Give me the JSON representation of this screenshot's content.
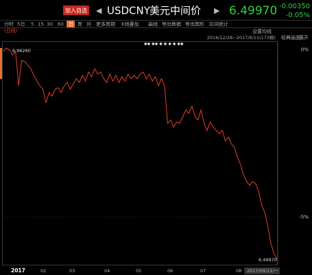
{
  "header": {
    "add_button": "加入自选",
    "prev_arrow": "◀",
    "symbol": "USDCNY",
    "name": "美元中间价",
    "next_arrow": "▶",
    "price": "6.49970",
    "change": "-0.00350",
    "change_pct": "-0.05%"
  },
  "toolbar": {
    "items": [
      "分时",
      "5日",
      "5",
      "15",
      "30",
      "60",
      "日",
      "周",
      "月",
      "更多周期",
      "K线叠加",
      "画线",
      "导出数据",
      "导出图形",
      "区间统计"
    ],
    "selected": "日"
  },
  "panel": {
    "period": "(日线)",
    "ma_setting": "设置均线",
    "range": "2016/12/28~2017/9/11(173根)",
    "classic": "经典画面",
    "expand": "展开"
  },
  "chart_data": {
    "type": "line",
    "color": "#e8402c",
    "values": [
      -0.06,
      0.05,
      -0.01,
      -0.16,
      -0.06,
      -1.08,
      -0.32,
      -0.36,
      -0.46,
      -0.57,
      -0.77,
      -0.94,
      -1.08,
      -1.18,
      -1.59,
      -1.28,
      -1.39,
      -1.18,
      -1.14,
      -1.28,
      -1.08,
      -0.98,
      -1.18,
      -1.02,
      -0.87,
      -0.98,
      -0.77,
      -0.94,
      -0.67,
      -0.81,
      -0.57,
      -0.73,
      -0.67,
      -0.87,
      -0.98,
      -0.73,
      -0.94,
      -0.77,
      -0.98,
      -0.81,
      -0.94,
      -0.73,
      -0.87,
      -0.77,
      -0.87,
      -0.73,
      -0.67,
      -0.87,
      -0.73,
      -0.94,
      -0.81,
      -1.08,
      -0.87,
      -1.08,
      -2.2,
      -2.1,
      -2.31,
      -2.16,
      -2.2,
      -2.0,
      -1.8,
      -1.9,
      -1.69,
      -2.0,
      -2.1,
      -1.8,
      -2.2,
      -2.41,
      -2.16,
      -2.31,
      -2.41,
      -2.51,
      -2.41,
      -2.72,
      -2.61,
      -2.82,
      -2.92,
      -3.23,
      -3.43,
      -3.74,
      -3.94,
      -4.05,
      -3.94,
      -4.01,
      -4.25,
      -4.66,
      -4.87,
      -5.28,
      -5.79,
      -6.09,
      -6.26
    ],
    "ylim": [
      -6.4,
      0.15
    ],
    "yticks": [
      {
        "value": 0,
        "label": "0%"
      },
      {
        "value": -5,
        "label": "-5%"
      }
    ],
    "x_labels": [
      "2017",
      "02",
      "03",
      "04",
      "05",
      "06",
      "07",
      "08",
      "2017/09/11/一"
    ],
    "max_label": "6.96260",
    "last_label": "6.49970"
  }
}
